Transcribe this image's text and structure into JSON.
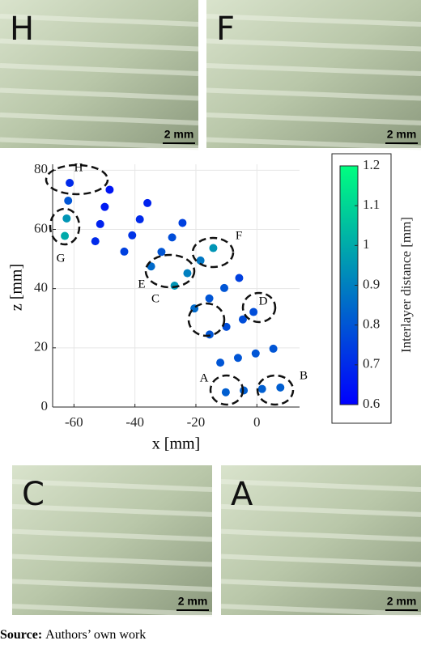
{
  "panels": [
    {
      "label": "H",
      "scale": "2 mm"
    },
    {
      "label": "F",
      "scale": "2 mm"
    },
    {
      "label": "C",
      "scale": "2 mm"
    },
    {
      "label": "A",
      "scale": "2 mm"
    }
  ],
  "chart_data": {
    "type": "scatter",
    "xlabel": "x [mm]",
    "ylabel": "z [mm]",
    "xlim": [
      -67,
      14
    ],
    "ylim": [
      0,
      82
    ],
    "xticks": [
      -60,
      -40,
      -20,
      0
    ],
    "yticks": [
      0,
      20,
      40,
      60,
      80
    ],
    "grid": true,
    "colorbar": {
      "label": "Interlayer distance [mm]",
      "lim": [
        0.6,
        1.2
      ],
      "ticks": [
        0.6,
        0.7,
        0.8,
        0.9,
        1,
        1.1,
        1.2
      ],
      "colormap": [
        "#0000ff",
        "#00ff80"
      ]
    },
    "annotations": [
      "H",
      "G",
      "F",
      "E",
      "C",
      "D",
      "A",
      "B"
    ],
    "x": [
      -10.2,
      -12.0,
      -15.5,
      -20.5,
      -27.0,
      -34.7,
      -43.5,
      -53.0,
      -63.0,
      -4.3,
      -6.2,
      -10.0,
      -15.6,
      -22.8,
      -31.3,
      -40.9,
      -51.4,
      -62.4,
      1.7,
      -0.4,
      -4.6,
      -10.7,
      -18.5,
      -27.8,
      -38.4,
      -49.9,
      -61.9,
      7.7,
      5.4,
      -1.1,
      -5.8,
      -14.3,
      -24.4,
      -35.9,
      -48.3,
      -61.4
    ],
    "y": [
      5.0,
      15.0,
      24.5,
      33.3,
      41.0,
      47.5,
      52.5,
      56.0,
      57.8,
      5.6,
      16.6,
      27.1,
      36.7,
      45.2,
      52.4,
      58.0,
      61.8,
      63.7,
      6.1,
      18.1,
      29.6,
      40.2,
      49.5,
      57.3,
      63.4,
      67.6,
      69.7,
      6.6,
      19.7,
      32.1,
      43.6,
      53.7,
      62.2,
      68.9,
      73.4,
      75.7
    ],
    "values": [
      0.82,
      0.8,
      0.8,
      0.85,
      0.95,
      0.85,
      0.75,
      0.7,
      1.0,
      0.82,
      0.8,
      0.78,
      0.8,
      0.9,
      0.8,
      0.72,
      0.68,
      0.95,
      0.82,
      0.8,
      0.78,
      0.8,
      0.88,
      0.78,
      0.7,
      0.66,
      0.8,
      0.82,
      0.8,
      0.78,
      0.75,
      0.95,
      0.75,
      0.68,
      0.65,
      0.7
    ]
  },
  "source": {
    "label": "Source:",
    "text": "Authors’ own work"
  }
}
